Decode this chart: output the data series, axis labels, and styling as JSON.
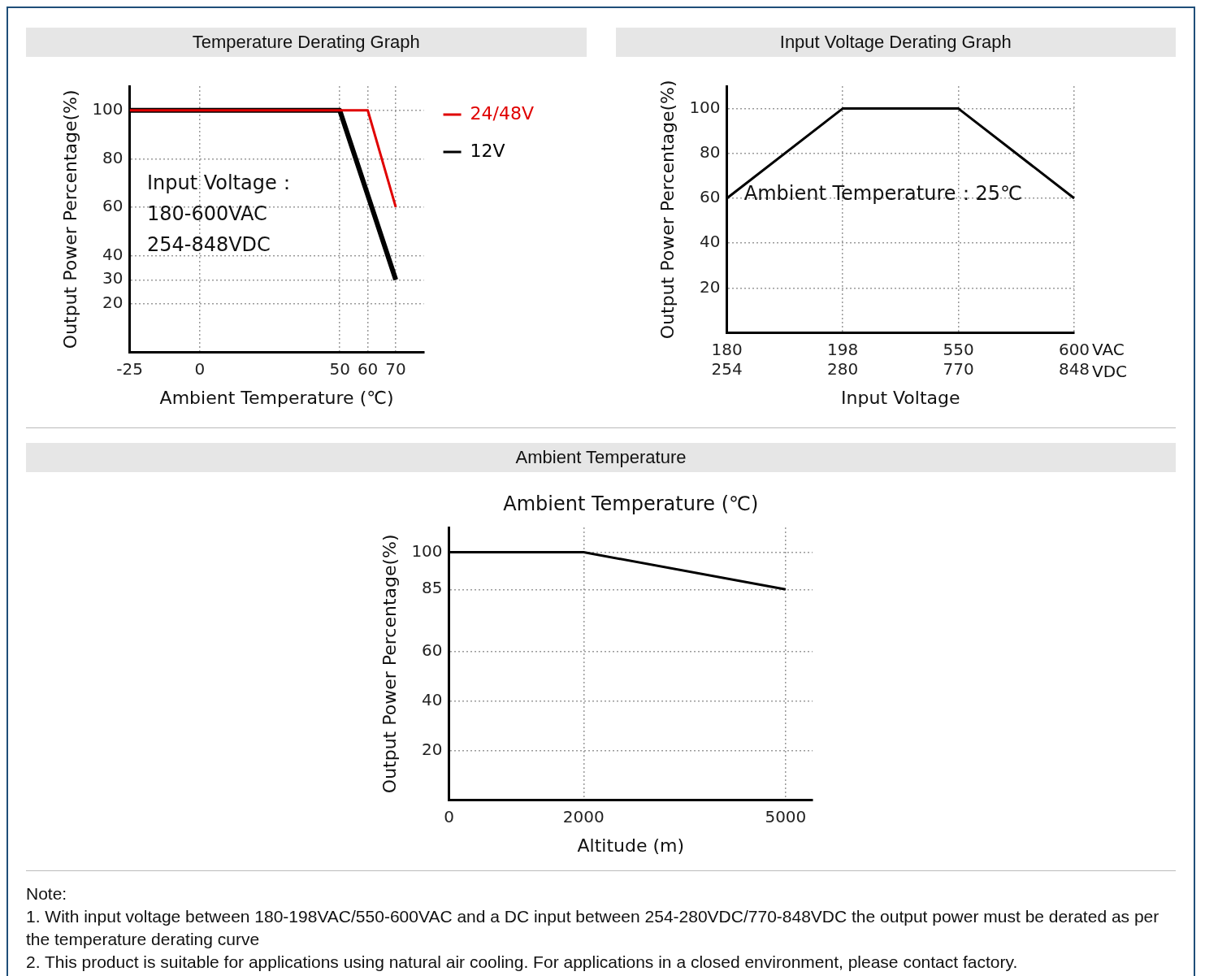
{
  "chart_data": [
    {
      "type": "line",
      "title": "Temperature Derating Graph",
      "xlabel": "Ambient Temperature (℃)",
      "ylabel": "Output Power Percentage(%)",
      "xlim": [
        -25,
        80
      ],
      "xticks": [
        -25,
        0,
        50,
        60,
        70
      ],
      "ylim": [
        0,
        110
      ],
      "yticks": [
        20,
        30,
        40,
        60,
        80,
        100
      ],
      "grid": true,
      "legend": "right",
      "marker": "none",
      "line_style": "solid",
      "series": [
        {
          "name": "24/48V",
          "color": "#e00000",
          "x": [
            -25,
            60,
            70
          ],
          "values": [
            100,
            100,
            60
          ]
        },
        {
          "name": "12V",
          "color": "#000000",
          "x": [
            -25,
            50,
            70
          ],
          "values": [
            100,
            100,
            30
          ]
        }
      ],
      "annotations": [
        "Input Voltage：\n180-600VAC\n254-848VDC"
      ]
    },
    {
      "type": "line",
      "title": "Input Voltage Derating Graph",
      "xlabel": "Input Voltage",
      "ylabel": "Output Power Percentage(%)",
      "categories": [
        "180\n254",
        "198\n280",
        "550\n770",
        "600\n848"
      ],
      "ylim": [
        0,
        110
      ],
      "yticks": [
        20,
        40,
        60,
        80,
        100
      ],
      "grid": true,
      "marker": "none",
      "line_style": "solid",
      "series": [
        {
          "color": "#000000",
          "values": [
            60,
            100,
            100,
            60
          ]
        }
      ],
      "annotations": [
        "Ambient Temperature：25℃",
        "VAC",
        "VDC"
      ]
    },
    {
      "type": "line",
      "title": "Ambient Temperature",
      "xlabel": "Altitude (m)",
      "ylabel": "Output Power Percentage(%)",
      "xlim": [
        0,
        5400
      ],
      "xticks": [
        0,
        2000,
        5000
      ],
      "ylim": [
        0,
        110
      ],
      "yticks": [
        20,
        40,
        60,
        85,
        100
      ],
      "grid": true,
      "marker": "none",
      "line_style": "solid",
      "series": [
        {
          "color": "#000000",
          "x": [
            0,
            2000,
            5000
          ],
          "values": [
            100,
            100,
            85
          ]
        }
      ],
      "annotations": [
        "Ambient Temperature (℃)",
        "Note:",
        "1. With input voltage between 180-198VAC/550-600VAC and a DC input between 254-280VDC/770-848VDC the output power must be derated as per the temperature derating curve",
        "2. This product is suitable for applications using natural air cooling. For applications in a closed environment, please contact factory."
      ]
    }
  ]
}
